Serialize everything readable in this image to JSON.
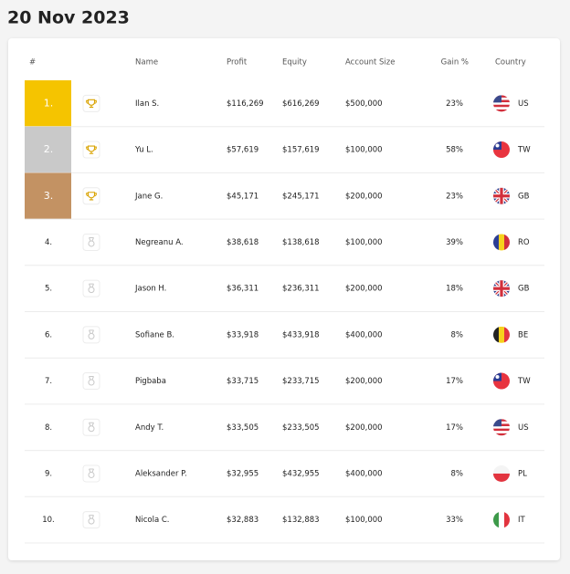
{
  "header": {
    "title": "20 Nov 2023"
  },
  "table": {
    "columns": [
      "#",
      "Name",
      "Profit",
      "Equity",
      "Account Size",
      "Gain %",
      "Country"
    ],
    "rows": [
      [
        "1.",
        "Ilan S.",
        "$116,269",
        "$616,269",
        "$500,000",
        "23%",
        "US"
      ],
      [
        "2.",
        "Yu L.",
        "$57,619",
        "$157,619",
        "$100,000",
        "58%",
        "TW"
      ],
      [
        "3.",
        "Jane G.",
        "$45,171",
        "$245,171",
        "$200,000",
        "23%",
        "GB"
      ],
      [
        "4.",
        "Negreanu A.",
        "$38,618",
        "$138,618",
        "$100,000",
        "39%",
        "RO"
      ],
      [
        "5.",
        "Jason H.",
        "$36,311",
        "$236,311",
        "$200,000",
        "18%",
        "GB"
      ],
      [
        "6.",
        "Sofiane B.",
        "$33,918",
        "$433,918",
        "$400,000",
        "8%",
        "BE"
      ],
      [
        "7.",
        "Pigbaba",
        "$33,715",
        "$233,715",
        "$200,000",
        "17%",
        "TW"
      ],
      [
        "8.",
        "Andy T.",
        "$33,505",
        "$233,505",
        "$200,000",
        "17%",
        "US"
      ],
      [
        "9.",
        "Aleksander P.",
        "$32,955",
        "$432,955",
        "$400,000",
        "8%",
        "PL"
      ],
      [
        "10.",
        "Nicola C.",
        "$32,883",
        "$132,883",
        "$100,000",
        "33%",
        "IT"
      ]
    ]
  }
}
